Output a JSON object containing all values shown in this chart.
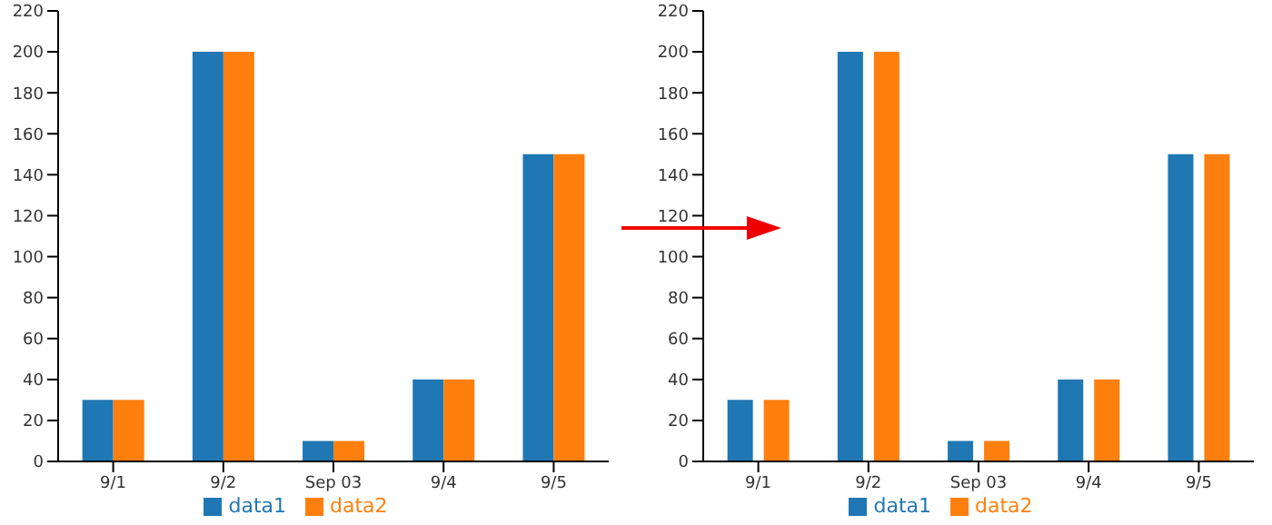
{
  "chart_data": [
    {
      "type": "bar",
      "categories": [
        "9/1",
        "9/2",
        "Sep 03",
        "9/4",
        "9/5"
      ],
      "series": [
        {
          "name": "data1",
          "color": "#1f77b4",
          "values": [
            30,
            200,
            10,
            40,
            150
          ]
        },
        {
          "name": "data2",
          "color": "#ff7f0e",
          "values": [
            30,
            200,
            10,
            40,
            150
          ]
        }
      ],
      "ylim": [
        0,
        220
      ],
      "yticks": [
        0,
        20,
        40,
        60,
        80,
        100,
        120,
        140,
        160,
        180,
        200,
        220
      ],
      "grid": false,
      "legend": "bottom"
    },
    {
      "type": "bar",
      "categories": [
        "9/1",
        "9/2",
        "Sep 03",
        "9/4",
        "9/5"
      ],
      "series": [
        {
          "name": "data1",
          "color": "#1f77b4",
          "values": [
            30,
            200,
            10,
            40,
            150
          ]
        },
        {
          "name": "data2",
          "color": "#ff7f0e",
          "values": [
            30,
            200,
            10,
            40,
            150
          ]
        }
      ],
      "ylim": [
        0,
        220
      ],
      "yticks": [
        0,
        20,
        40,
        60,
        80,
        100,
        120,
        140,
        160,
        180,
        200,
        220
      ],
      "grid": false,
      "legend": "bottom"
    }
  ]
}
